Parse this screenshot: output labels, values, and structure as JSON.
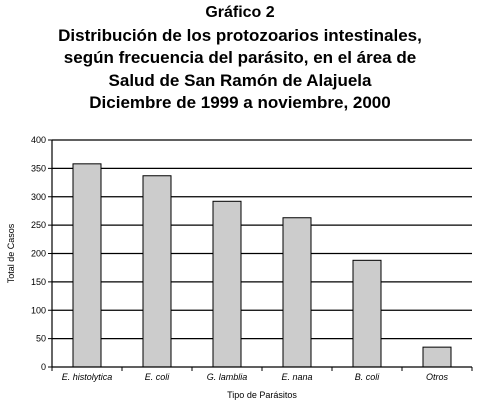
{
  "chart_data": {
    "type": "bar",
    "title_lines": [
      "Gráfico 2",
      "Distribución de los protozoarios intestinales,",
      "según frecuencia del parásito, en el área de",
      "Salud de San Ramón de Alajuela",
      "Diciembre de 1999 a noviembre, 2000"
    ],
    "xlabel": "Tipo de Parásitos",
    "ylabel": "Total de Casos",
    "categories": [
      "E. histolytica",
      "E. coli",
      "G. lamblia",
      "E. nana",
      "B. coli",
      "Otros"
    ],
    "values": [
      358,
      337,
      292,
      263,
      188,
      35
    ],
    "ylim": [
      0,
      400
    ],
    "yticks": [
      0,
      50,
      100,
      150,
      200,
      250,
      300,
      350,
      400
    ],
    "grid": true,
    "bar_color": "#cccccc",
    "bar_outline": "#000000",
    "legend": "none"
  }
}
